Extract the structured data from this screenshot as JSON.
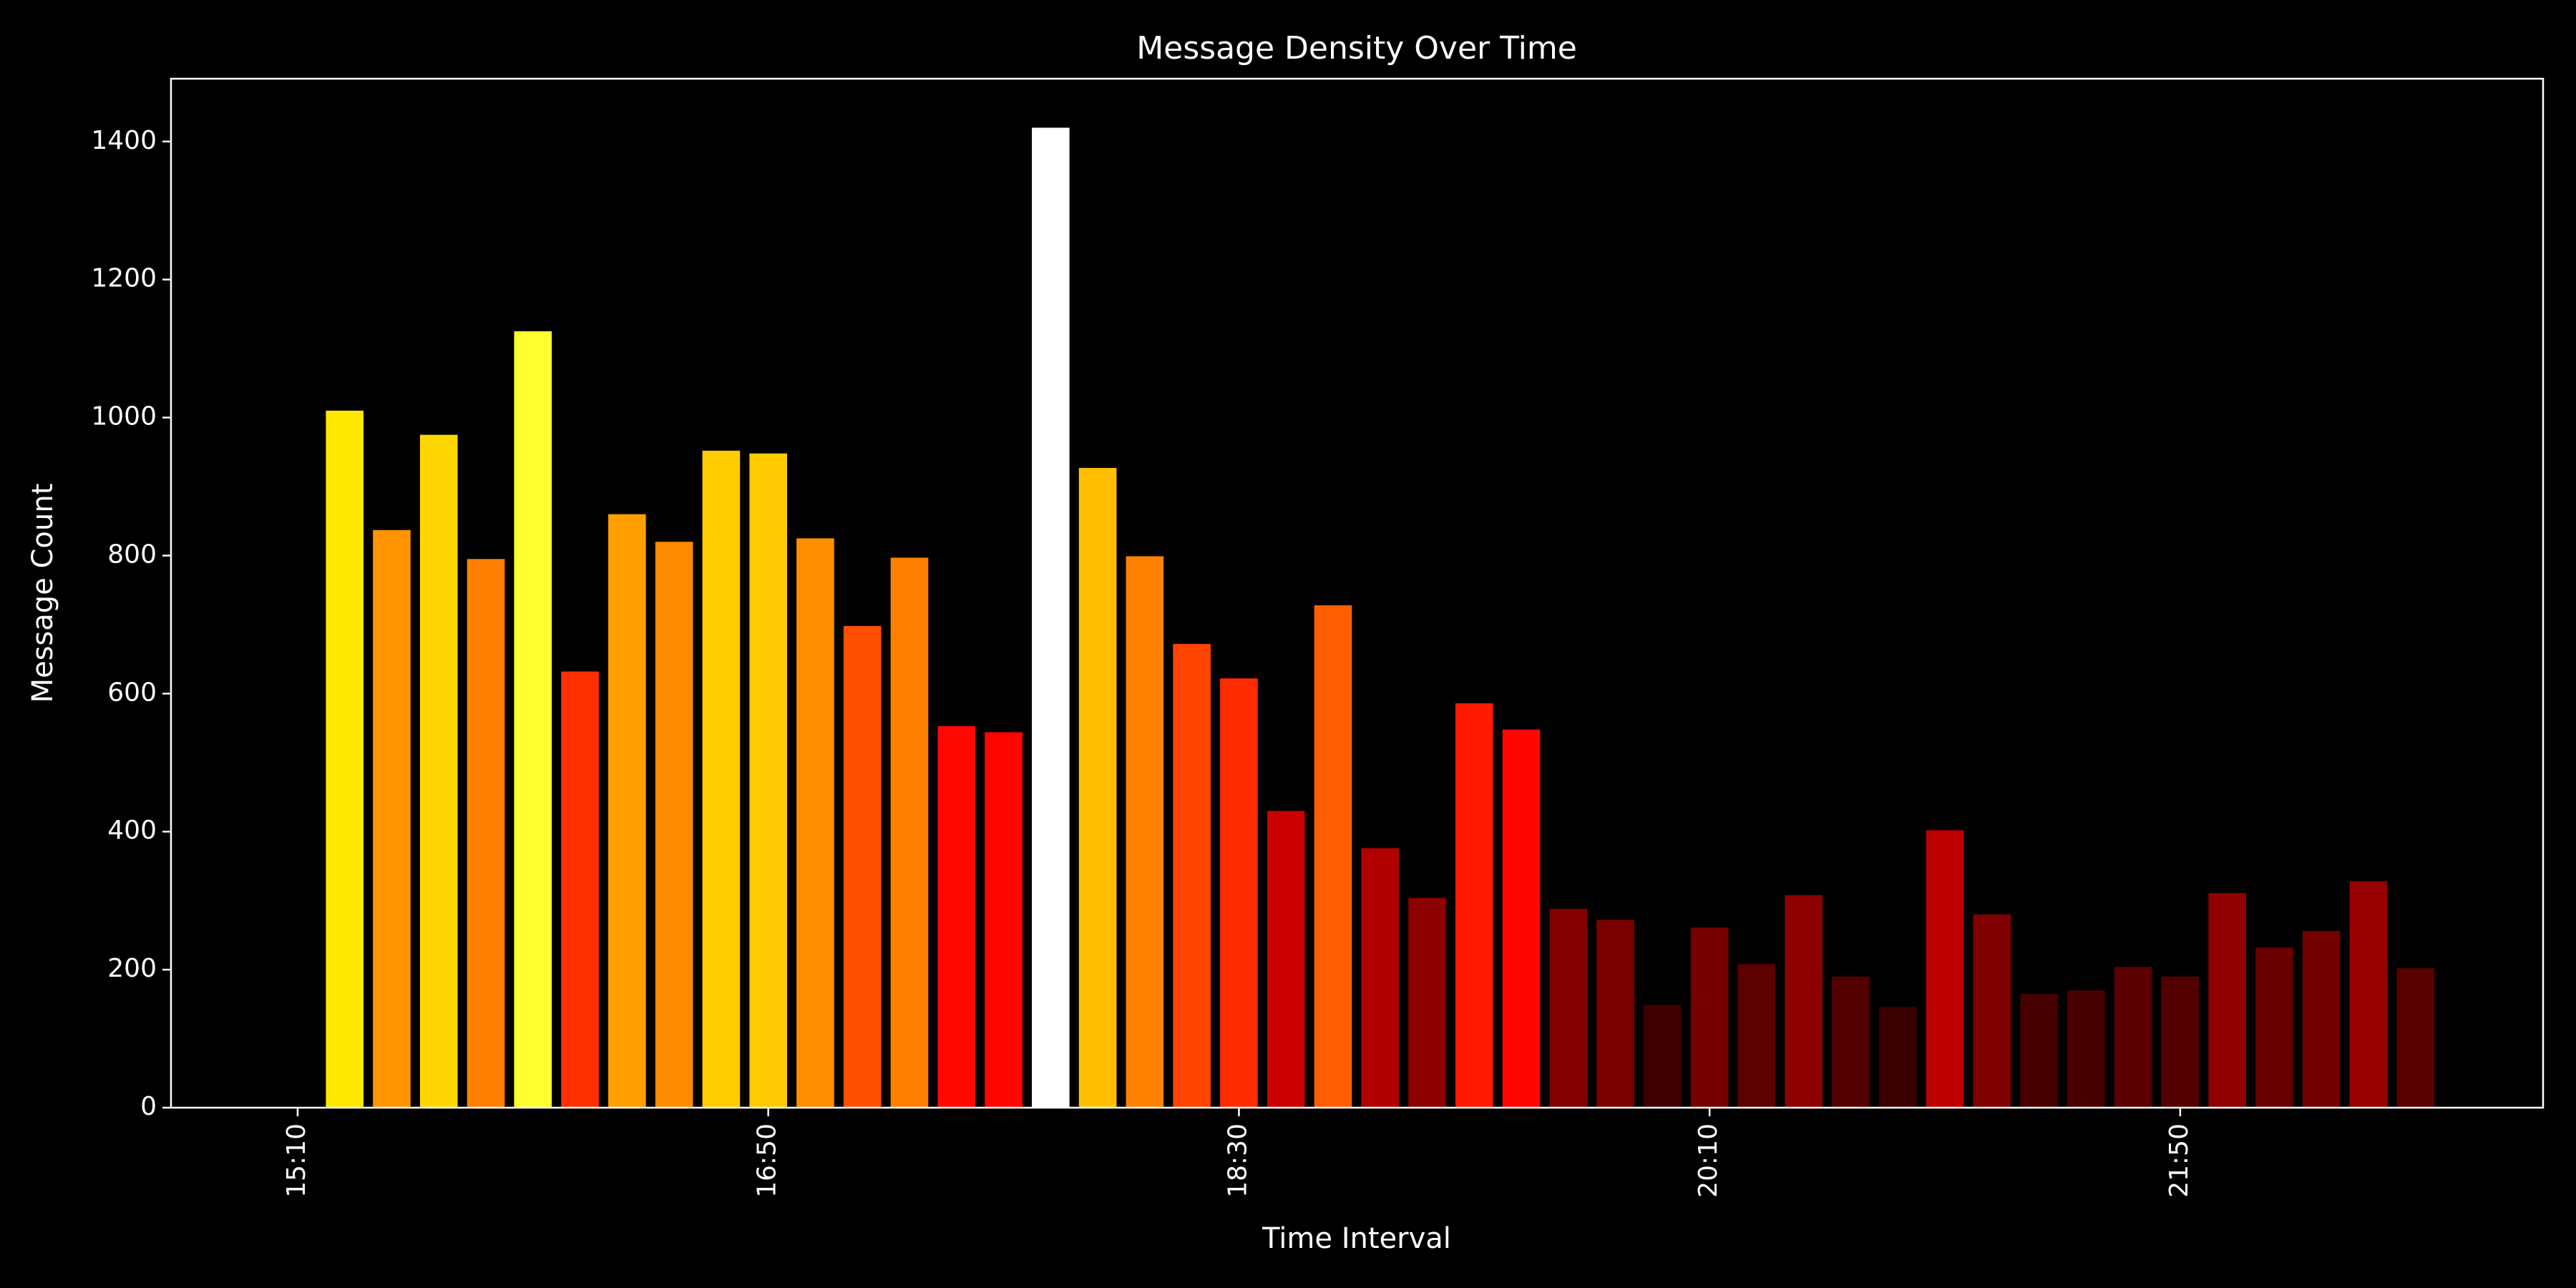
{
  "chart_data": {
    "type": "bar",
    "title": "Message Density Over Time",
    "xlabel": "Time Interval",
    "ylabel": "Message Count",
    "categories": [
      "15:10",
      null,
      null,
      null,
      null,
      null,
      null,
      null,
      null,
      null,
      "16:50",
      null,
      null,
      null,
      null,
      null,
      null,
      null,
      null,
      null,
      "18:30",
      null,
      null,
      null,
      null,
      null,
      null,
      null,
      null,
      null,
      "20:10",
      null,
      null,
      null,
      null,
      null,
      null,
      null,
      null,
      null,
      "21:50",
      null,
      null,
      null,
      null,
      null
    ],
    "values": [
      25,
      1010,
      837,
      975,
      795,
      1125,
      632,
      860,
      820,
      952,
      948,
      825,
      698,
      797,
      553,
      544,
      1420,
      927,
      799,
      672,
      622,
      430,
      728,
      376,
      304,
      586,
      548,
      288,
      272,
      149,
      261,
      208,
      308,
      190,
      146,
      402,
      280,
      165,
      170,
      204,
      190,
      311,
      232,
      256,
      328,
      202
    ],
    "colormap": "hot",
    "ylim": [
      0,
      1491
    ],
    "yticks": [
      0,
      200,
      400,
      600,
      800,
      1000,
      1200,
      1400
    ],
    "grid": false
  }
}
